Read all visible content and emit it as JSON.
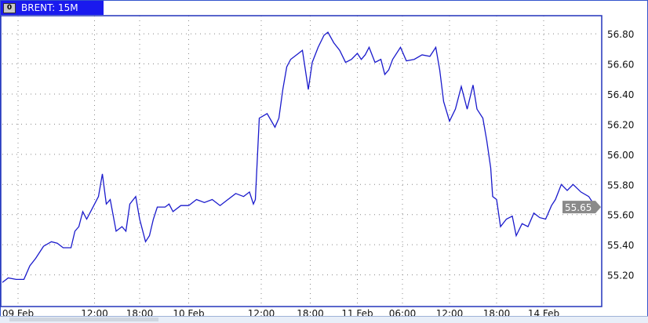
{
  "window": {
    "title": "BRENT: 15M",
    "icon": "0"
  },
  "colors": {
    "line": "#1a1acc",
    "frame": "#2233bb",
    "grid": "#888888",
    "title_bg": "#1a1aee",
    "last_price_bg": "#8a8a8a"
  },
  "chart_data": {
    "type": "line",
    "title": "BRENT: 15M",
    "x_unit": "15-minute bar index",
    "xlim": [
      0,
      304
    ],
    "ylim": [
      54.99,
      56.92
    ],
    "grid": true,
    "y_ticks": [
      "55.20",
      "55.40",
      "55.60",
      "55.80",
      "56.00",
      "56.20",
      "56.40",
      "56.60",
      "56.80"
    ],
    "x_ticks": [
      {
        "bar": 8,
        "label": "09 Feb"
      },
      {
        "bar": 47,
        "label": "12:00"
      },
      {
        "bar": 70,
        "label": "18:00"
      },
      {
        "bar": 95,
        "label": "10 Feb"
      },
      {
        "bar": 132,
        "label": "12:00"
      },
      {
        "bar": 157,
        "label": "18:00"
      },
      {
        "bar": 181,
        "label": "11 Feb"
      },
      {
        "bar": 204,
        "label": "06:00"
      },
      {
        "bar": 228,
        "label": "12:00"
      },
      {
        "bar": 252,
        "label": "18:00"
      },
      {
        "bar": 276,
        "label": "14 Feb"
      }
    ],
    "last_price": "55.65",
    "points": [
      [
        0,
        55.15
      ],
      [
        3,
        55.18
      ],
      [
        7,
        55.17
      ],
      [
        11,
        55.17
      ],
      [
        14,
        55.26
      ],
      [
        17,
        55.31
      ],
      [
        21,
        55.39
      ],
      [
        25,
        55.42
      ],
      [
        28,
        55.41
      ],
      [
        31,
        55.38
      ],
      [
        35,
        55.38
      ],
      [
        37,
        55.49
      ],
      [
        39,
        55.52
      ],
      [
        41,
        55.62
      ],
      [
        43,
        55.57
      ],
      [
        45,
        55.62
      ],
      [
        47,
        55.67
      ],
      [
        49,
        55.72
      ],
      [
        51,
        55.87
      ],
      [
        53,
        55.67
      ],
      [
        55,
        55.7
      ],
      [
        58,
        55.49
      ],
      [
        61,
        55.52
      ],
      [
        63,
        55.49
      ],
      [
        65,
        55.67
      ],
      [
        68,
        55.72
      ],
      [
        70,
        55.57
      ],
      [
        73,
        55.42
      ],
      [
        75,
        55.46
      ],
      [
        77,
        55.57
      ],
      [
        79,
        55.65
      ],
      [
        83,
        55.65
      ],
      [
        85,
        55.67
      ],
      [
        87,
        55.62
      ],
      [
        91,
        55.66
      ],
      [
        95,
        55.66
      ],
      [
        99,
        55.7
      ],
      [
        103,
        55.68
      ],
      [
        107,
        55.7
      ],
      [
        111,
        55.66
      ],
      [
        115,
        55.7
      ],
      [
        119,
        55.74
      ],
      [
        123,
        55.72
      ],
      [
        126,
        55.75
      ],
      [
        128,
        55.67
      ],
      [
        129,
        55.7
      ],
      [
        131,
        56.24
      ],
      [
        135,
        56.27
      ],
      [
        139,
        56.18
      ],
      [
        141,
        56.24
      ],
      [
        143,
        56.43
      ],
      [
        145,
        56.58
      ],
      [
        147,
        56.63
      ],
      [
        150,
        56.66
      ],
      [
        153,
        56.69
      ],
      [
        156,
        56.43
      ],
      [
        158,
        56.61
      ],
      [
        161,
        56.71
      ],
      [
        164,
        56.79
      ],
      [
        166,
        56.81
      ],
      [
        169,
        56.74
      ],
      [
        172,
        56.69
      ],
      [
        175,
        56.61
      ],
      [
        178,
        56.63
      ],
      [
        181,
        56.67
      ],
      [
        183,
        56.63
      ],
      [
        185,
        56.66
      ],
      [
        187,
        56.71
      ],
      [
        190,
        56.61
      ],
      [
        193,
        56.63
      ],
      [
        195,
        56.53
      ],
      [
        197,
        56.56
      ],
      [
        199,
        56.63
      ],
      [
        203,
        56.71
      ],
      [
        206,
        56.62
      ],
      [
        210,
        56.63
      ],
      [
        214,
        56.66
      ],
      [
        218,
        56.65
      ],
      [
        221,
        56.71
      ],
      [
        223,
        56.56
      ],
      [
        225,
        56.35
      ],
      [
        228,
        56.22
      ],
      [
        231,
        56.3
      ],
      [
        234,
        56.45
      ],
      [
        237,
        56.3
      ],
      [
        240,
        56.46
      ],
      [
        242,
        56.3
      ],
      [
        245,
        56.24
      ],
      [
        247,
        56.09
      ],
      [
        249,
        55.91
      ],
      [
        250,
        55.72
      ],
      [
        252,
        55.7
      ],
      [
        254,
        55.52
      ],
      [
        257,
        55.57
      ],
      [
        260,
        55.59
      ],
      [
        262,
        55.46
      ],
      [
        265,
        55.54
      ],
      [
        268,
        55.52
      ],
      [
        271,
        55.61
      ],
      [
        274,
        55.58
      ],
      [
        277,
        55.57
      ],
      [
        280,
        55.66
      ],
      [
        282,
        55.7
      ],
      [
        285,
        55.8
      ],
      [
        288,
        55.76
      ],
      [
        291,
        55.8
      ],
      [
        295,
        55.75
      ],
      [
        299,
        55.72
      ],
      [
        302,
        55.66
      ],
      [
        304,
        55.66
      ]
    ]
  }
}
